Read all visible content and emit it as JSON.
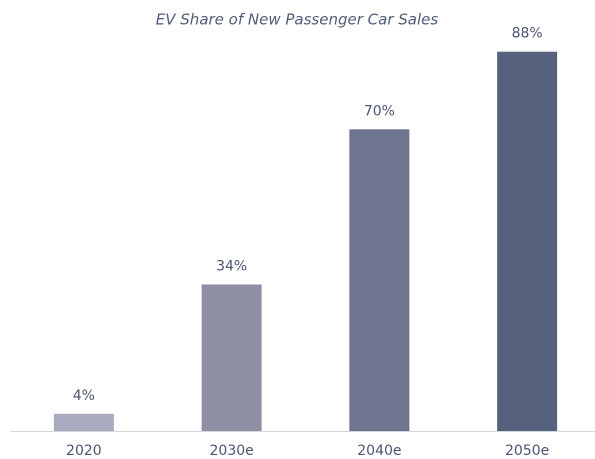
{
  "chart_data": {
    "type": "bar",
    "title": "EV Share of New Passenger Car Sales",
    "categories": [
      "2020",
      "2030e",
      "2040e",
      "2050e"
    ],
    "values": [
      4,
      34,
      70,
      88
    ],
    "value_labels": [
      "4%",
      "34%",
      "70%",
      "88%"
    ],
    "colors": [
      "#a9aabd",
      "#8e8fa3",
      "#6f748f",
      "#56617d"
    ],
    "ylim": [
      0,
      100
    ]
  }
}
